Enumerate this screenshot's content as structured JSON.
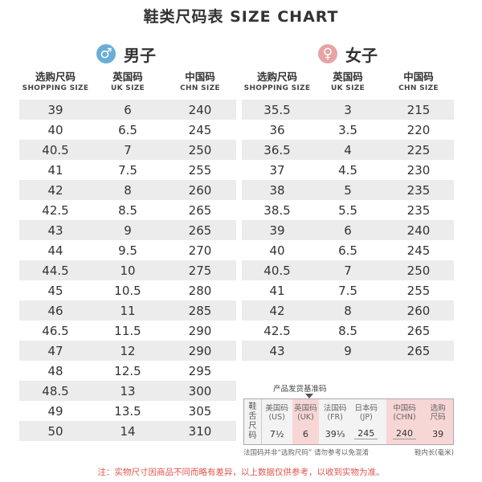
{
  "title": "鞋类尺码表 SIZE CHART",
  "colors": {
    "male_accent": "#6aaed6",
    "female_accent": "#e8a3a5",
    "highlight": "#f7d6d6",
    "footnote": "#e0534c",
    "stripe": "#ececec"
  },
  "men": {
    "heading": "男子",
    "icon": "male-symbol-icon",
    "icon_glyph": "♂",
    "headers": [
      {
        "cn": "选购尺码",
        "en": "SHOPPING SIZE"
      },
      {
        "cn": "英国码",
        "en": "UK SIZE"
      },
      {
        "cn": "中国码",
        "en": "CHN SIZE"
      }
    ],
    "rows": [
      [
        "39",
        "6",
        "240"
      ],
      [
        "40",
        "6.5",
        "245"
      ],
      [
        "40.5",
        "7",
        "250"
      ],
      [
        "41",
        "7.5",
        "255"
      ],
      [
        "42",
        "8",
        "260"
      ],
      [
        "42.5",
        "8.5",
        "265"
      ],
      [
        "43",
        "9",
        "265"
      ],
      [
        "44",
        "9.5",
        "270"
      ],
      [
        "44.5",
        "10",
        "275"
      ],
      [
        "45",
        "10.5",
        "280"
      ],
      [
        "46",
        "11",
        "285"
      ],
      [
        "46.5",
        "11.5",
        "290"
      ],
      [
        "47",
        "12",
        "290"
      ],
      [
        "48",
        "12.5",
        "295"
      ],
      [
        "48.5",
        "13",
        "300"
      ],
      [
        "49",
        "13.5",
        "305"
      ],
      [
        "50",
        "14",
        "310"
      ]
    ]
  },
  "women": {
    "heading": "女子",
    "icon": "female-symbol-icon",
    "icon_glyph": "♀",
    "headers": [
      {
        "cn": "选购尺码",
        "en": "SHOPPING SIZE"
      },
      {
        "cn": "英国码",
        "en": "UK SIZE"
      },
      {
        "cn": "中国码",
        "en": "CHN SIZE"
      }
    ],
    "rows": [
      [
        "35.5",
        "3",
        "215"
      ],
      [
        "36",
        "3.5",
        "220"
      ],
      [
        "36.5",
        "4",
        "225"
      ],
      [
        "37",
        "4.5",
        "230"
      ],
      [
        "38",
        "5",
        "235"
      ],
      [
        "38.5",
        "5.5",
        "235"
      ],
      [
        "39",
        "6",
        "240"
      ],
      [
        "40",
        "6.5",
        "245"
      ],
      [
        "40.5",
        "7",
        "250"
      ],
      [
        "41",
        "7.5",
        "255"
      ],
      [
        "42",
        "8",
        "260"
      ],
      [
        "42.5",
        "8.5",
        "265"
      ],
      [
        "43",
        "9",
        "265"
      ]
    ]
  },
  "label_diagram": {
    "title": "产品发货基准码",
    "side_label": [
      "鞋",
      "舌",
      "尺",
      "码"
    ],
    "columns": [
      {
        "top": "美国码",
        "sub": "(US)",
        "value": "7½"
      },
      {
        "top": "英国码",
        "sub": "(UK)",
        "value": "6"
      },
      {
        "top": "法国码",
        "sub": "(FR)",
        "value": "39⅓"
      },
      {
        "top": "日本码",
        "sub": "(JP)",
        "value": "245"
      },
      {
        "top": "中国码",
        "sub": "(CHN)",
        "value": "240"
      },
      {
        "top": "选购",
        "sub": "尺码",
        "value": "39"
      }
    ],
    "note_left": "法国码并非“选购尺码” 请勿参考以免混淆",
    "note_right": "鞋内长(毫米)"
  },
  "footnote": "注：实物尺寸因商品不同而略有差异，以上数据仅供参考，以收到实物为准。"
}
